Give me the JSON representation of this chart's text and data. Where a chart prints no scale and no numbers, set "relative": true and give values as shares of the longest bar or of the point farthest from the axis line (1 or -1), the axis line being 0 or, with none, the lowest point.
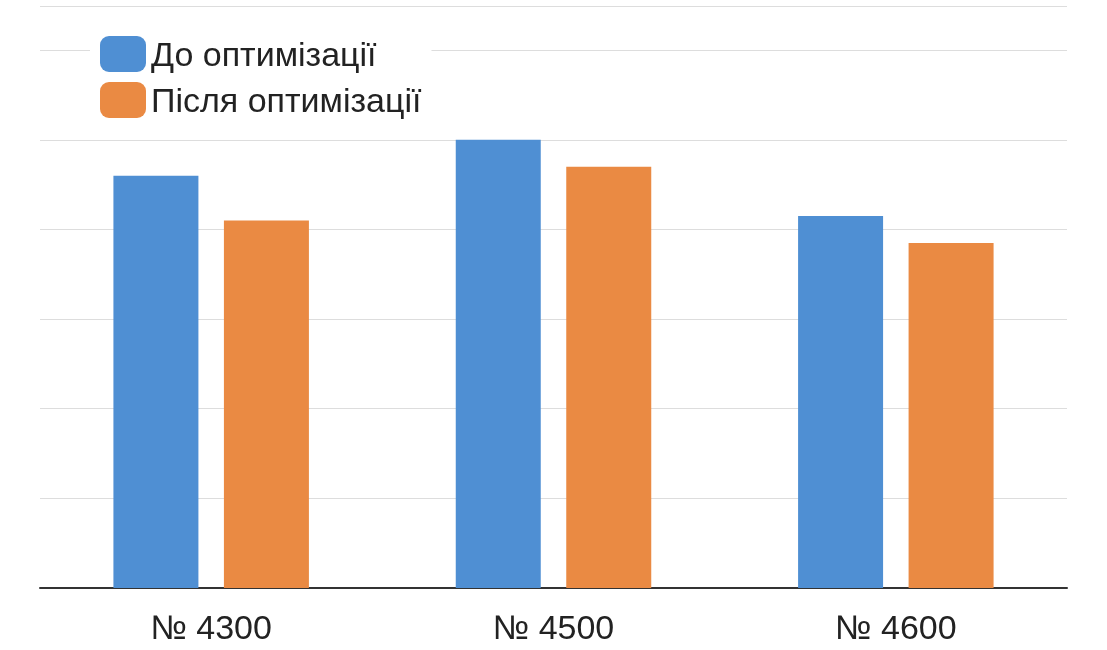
{
  "chart_data": {
    "type": "bar",
    "relative": true,
    "categories": [
      "№ 4300",
      "№ 4500",
      "№ 4600"
    ],
    "series": [
      {
        "name": "До оптимізації",
        "color": "#4f8fd3",
        "values": [
          0.92,
          1,
          0.83
        ]
      },
      {
        "name": "Після оптимізації",
        "color": "#ea8a43",
        "values": [
          0.82,
          0.94,
          0.77
        ]
      }
    ],
    "grid": "y",
    "legend": "top left"
  }
}
